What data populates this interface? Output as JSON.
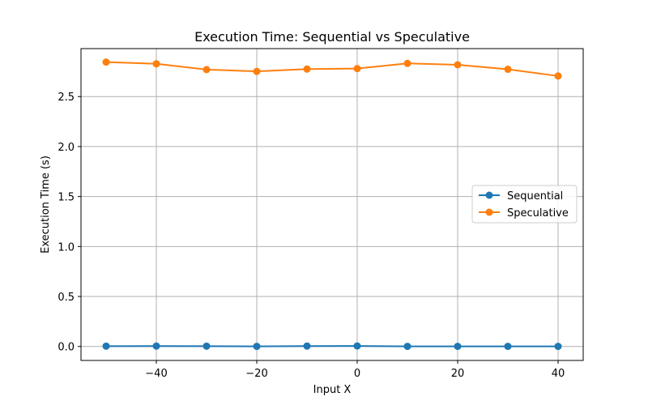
{
  "chart_data": {
    "type": "line",
    "title": "Execution Time: Sequential vs Speculative",
    "xlabel": "Input X",
    "ylabel": "Execution Time (s)",
    "x": [
      -50,
      -40,
      -30,
      -20,
      -10,
      0,
      10,
      20,
      30,
      40
    ],
    "xlim": [
      -55,
      45
    ],
    "ylim": [
      -0.14,
      2.98
    ],
    "xticks": [
      -40,
      -20,
      0,
      20,
      40
    ],
    "xtick_labels": [
      "−40",
      "−20",
      "0",
      "20",
      "40"
    ],
    "yticks": [
      0.0,
      0.5,
      1.0,
      1.5,
      2.0,
      2.5
    ],
    "ytick_labels": [
      "0.0",
      "0.5",
      "1.0",
      "1.5",
      "2.0",
      "2.5"
    ],
    "grid": true,
    "legend_position": "center-right",
    "series": [
      {
        "name": "Sequential",
        "color": "#1f77b4",
        "marker": "circle",
        "values": [
          0.003,
          0.004,
          0.003,
          0.001,
          0.004,
          0.005,
          0.001,
          0.001,
          0.001,
          0.001
        ]
      },
      {
        "name": "Speculative",
        "color": "#ff7f0e",
        "marker": "circle",
        "values": [
          2.845,
          2.828,
          2.77,
          2.752,
          2.775,
          2.78,
          2.832,
          2.818,
          2.773,
          2.706
        ]
      }
    ]
  }
}
